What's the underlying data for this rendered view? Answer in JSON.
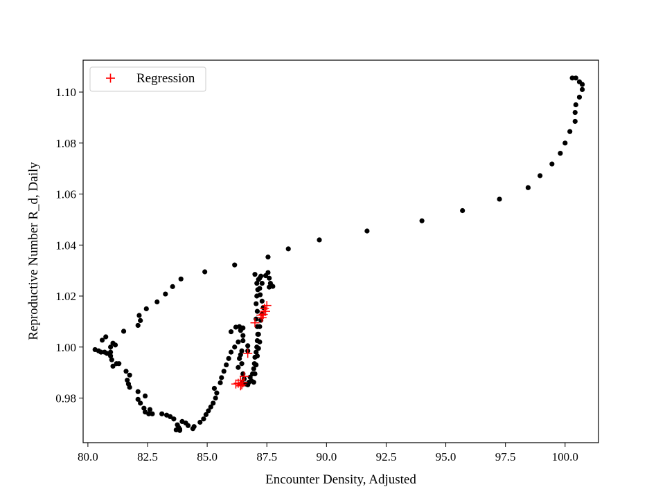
{
  "chart_data": {
    "type": "scatter",
    "title": "",
    "xlabel": "Encounter Density, Adjusted",
    "ylabel": "Reproductive Number R_d, Daily",
    "xlim": [
      79.8,
      101.4
    ],
    "ylim": [
      0.9625,
      1.1125
    ],
    "x_ticks": [
      80.0,
      82.5,
      85.0,
      87.5,
      90.0,
      92.5,
      95.0,
      97.5,
      100.0
    ],
    "x_tick_labels": [
      "80.0",
      "82.5",
      "85.0",
      "87.5",
      "90.0",
      "92.5",
      "95.0",
      "97.5",
      "100.0"
    ],
    "y_ticks": [
      0.98,
      1.0,
      1.02,
      1.04,
      1.06,
      1.08,
      1.1
    ],
    "y_tick_labels": [
      "0.98",
      "1.00",
      "1.02",
      "1.04",
      "1.06",
      "1.08",
      "1.10"
    ],
    "grid": false,
    "legend": {
      "position": "top-left",
      "entries": [
        "Regression"
      ]
    },
    "colors": {
      "data": "#000000",
      "regression": "#ff0000"
    },
    "series": [
      {
        "marker": "circle",
        "color": "#000000",
        "points": [
          [
            100.3,
            1.1055
          ],
          [
            100.45,
            1.1055
          ],
          [
            100.6,
            1.104
          ],
          [
            100.72,
            1.103
          ],
          [
            100.72,
            1.101
          ],
          [
            100.6,
            1.098
          ],
          [
            100.45,
            1.095
          ],
          [
            100.42,
            1.092
          ],
          [
            100.42,
            1.0885
          ],
          [
            100.2,
            1.0845
          ],
          [
            100.0,
            1.08
          ],
          [
            99.8,
            1.076
          ],
          [
            99.45,
            1.0718
          ],
          [
            98.95,
            1.0672
          ],
          [
            98.45,
            1.0625
          ],
          [
            97.25,
            1.058
          ],
          [
            95.7,
            1.0535
          ],
          [
            94.0,
            1.0495
          ],
          [
            91.7,
            1.0455
          ],
          [
            89.7,
            1.042
          ],
          [
            88.4,
            1.0385
          ],
          [
            87.55,
            1.0353
          ],
          [
            86.15,
            1.0322
          ],
          [
            84.9,
            1.0295
          ],
          [
            83.9,
            1.0267
          ],
          [
            83.55,
            1.0237
          ],
          [
            83.25,
            1.0208
          ],
          [
            82.9,
            1.0177
          ],
          [
            82.45,
            1.015
          ],
          [
            82.15,
            1.0124
          ],
          [
            82.2,
            1.0104
          ],
          [
            82.1,
            1.0085
          ],
          [
            81.5,
            1.0062
          ],
          [
            81.05,
            1.0015
          ],
          [
            81.15,
            1.0008
          ],
          [
            80.95,
            1.0
          ],
          [
            80.75,
            1.004
          ],
          [
            80.6,
            1.0027
          ],
          [
            80.95,
            0.998
          ],
          [
            80.7,
            0.998
          ],
          [
            80.55,
            0.998
          ],
          [
            80.45,
            0.9985
          ],
          [
            80.3,
            0.999
          ],
          [
            80.8,
            0.9975
          ],
          [
            80.95,
            0.9965
          ],
          [
            81.0,
            0.995
          ],
          [
            81.2,
            0.9935
          ],
          [
            81.3,
            0.9935
          ],
          [
            81.05,
            0.9925
          ],
          [
            81.6,
            0.9905
          ],
          [
            81.75,
            0.989
          ],
          [
            81.65,
            0.987
          ],
          [
            81.7,
            0.9855
          ],
          [
            81.75,
            0.9842
          ],
          [
            82.1,
            0.9825
          ],
          [
            82.4,
            0.9808
          ],
          [
            82.1,
            0.9795
          ],
          [
            82.2,
            0.978
          ],
          [
            82.35,
            0.976
          ],
          [
            82.6,
            0.9755
          ],
          [
            82.4,
            0.9745
          ],
          [
            82.55,
            0.9738
          ],
          [
            82.7,
            0.9738
          ],
          [
            83.1,
            0.9738
          ],
          [
            83.3,
            0.9733
          ],
          [
            83.45,
            0.9727
          ],
          [
            83.6,
            0.9718
          ],
          [
            83.75,
            0.9695
          ],
          [
            83.8,
            0.9685
          ],
          [
            83.85,
            0.9678
          ],
          [
            83.7,
            0.9675
          ],
          [
            83.85,
            0.9673
          ],
          [
            83.95,
            0.9708
          ],
          [
            84.1,
            0.9702
          ],
          [
            84.2,
            0.9692
          ],
          [
            84.45,
            0.9688
          ],
          [
            84.4,
            0.968
          ],
          [
            84.7,
            0.9705
          ],
          [
            84.85,
            0.9718
          ],
          [
            84.95,
            0.9735
          ],
          [
            85.05,
            0.975
          ],
          [
            85.15,
            0.9765
          ],
          [
            85.25,
            0.978
          ],
          [
            85.35,
            0.98
          ],
          [
            85.4,
            0.982
          ],
          [
            85.3,
            0.9838
          ],
          [
            85.55,
            0.986
          ],
          [
            85.6,
            0.988
          ],
          [
            85.7,
            0.9905
          ],
          [
            85.8,
            0.993
          ],
          [
            85.9,
            0.9955
          ],
          [
            86.0,
            0.998
          ],
          [
            86.15,
            1.0
          ],
          [
            86.3,
            1.002
          ],
          [
            86.5,
            1.0045
          ],
          [
            86.4,
            1.0065
          ],
          [
            86.2,
            1.0078
          ],
          [
            86.0,
            1.006
          ],
          [
            86.35,
            1.008
          ],
          [
            86.5,
            1.0075
          ],
          [
            86.5,
            1.0025
          ],
          [
            86.7,
            1.0005
          ],
          [
            86.45,
            0.9985
          ],
          [
            86.7,
            0.9985
          ],
          [
            86.4,
            0.997
          ],
          [
            86.35,
            0.9955
          ],
          [
            86.3,
            0.992
          ],
          [
            86.45,
            0.9935
          ],
          [
            86.5,
            0.9895
          ],
          [
            86.55,
            0.9875
          ],
          [
            86.45,
            0.986
          ],
          [
            86.6,
            0.9855
          ],
          [
            86.7,
            0.9852
          ],
          [
            86.75,
            0.9862
          ],
          [
            86.85,
            0.9868
          ],
          [
            86.8,
            0.9882
          ],
          [
            86.9,
            0.9895
          ],
          [
            86.95,
            0.9915
          ],
          [
            86.98,
            0.9935
          ],
          [
            87.0,
            0.996
          ],
          [
            87.05,
            0.998
          ],
          [
            87.08,
            1.0
          ],
          [
            87.1,
            1.0025
          ],
          [
            87.12,
            1.005
          ],
          [
            87.1,
            1.008
          ],
          [
            87.05,
            1.011
          ],
          [
            87.1,
            1.014
          ],
          [
            87.05,
            1.017
          ],
          [
            87.08,
            1.02
          ],
          [
            87.12,
            1.0225
          ],
          [
            87.08,
            1.025
          ],
          [
            87.15,
            1.0265
          ],
          [
            87.25,
            1.0278
          ],
          [
            87.0,
            1.0285
          ],
          [
            87.45,
            1.028
          ],
          [
            87.55,
            1.0292
          ],
          [
            87.6,
            1.027
          ],
          [
            87.65,
            1.025
          ],
          [
            87.75,
            1.0238
          ],
          [
            87.6,
            1.0235
          ],
          [
            87.2,
            1.027
          ],
          [
            87.3,
            1.025
          ],
          [
            87.2,
            1.023
          ],
          [
            87.22,
            1.0205
          ],
          [
            87.3,
            1.018
          ],
          [
            87.35,
            1.0155
          ],
          [
            87.3,
            1.013
          ],
          [
            87.25,
            1.0105
          ],
          [
            87.2,
            1.008
          ],
          [
            87.15,
            1.005
          ],
          [
            87.2,
            1.002
          ],
          [
            87.15,
            0.9995
          ],
          [
            87.1,
            0.9965
          ],
          [
            87.05,
            0.993
          ],
          [
            87.0,
            0.9895
          ],
          [
            86.95,
            0.9862
          ]
        ]
      },
      {
        "name": "Regression",
        "marker": "plus",
        "color": "#ff0000",
        "points": [
          [
            87.5,
            1.0163
          ],
          [
            87.4,
            1.0152
          ],
          [
            87.45,
            1.014
          ],
          [
            87.35,
            1.0128
          ],
          [
            87.3,
            1.0115
          ],
          [
            87.25,
            1.0125
          ],
          [
            87.0,
            1.0095
          ],
          [
            86.7,
            0.9975
          ],
          [
            86.55,
            0.9885
          ],
          [
            86.4,
            0.987
          ],
          [
            86.5,
            0.986
          ],
          [
            86.3,
            0.9858
          ],
          [
            86.2,
            0.9855
          ],
          [
            86.45,
            0.9852
          ],
          [
            86.4,
            0.9848
          ]
        ]
      }
    ]
  }
}
